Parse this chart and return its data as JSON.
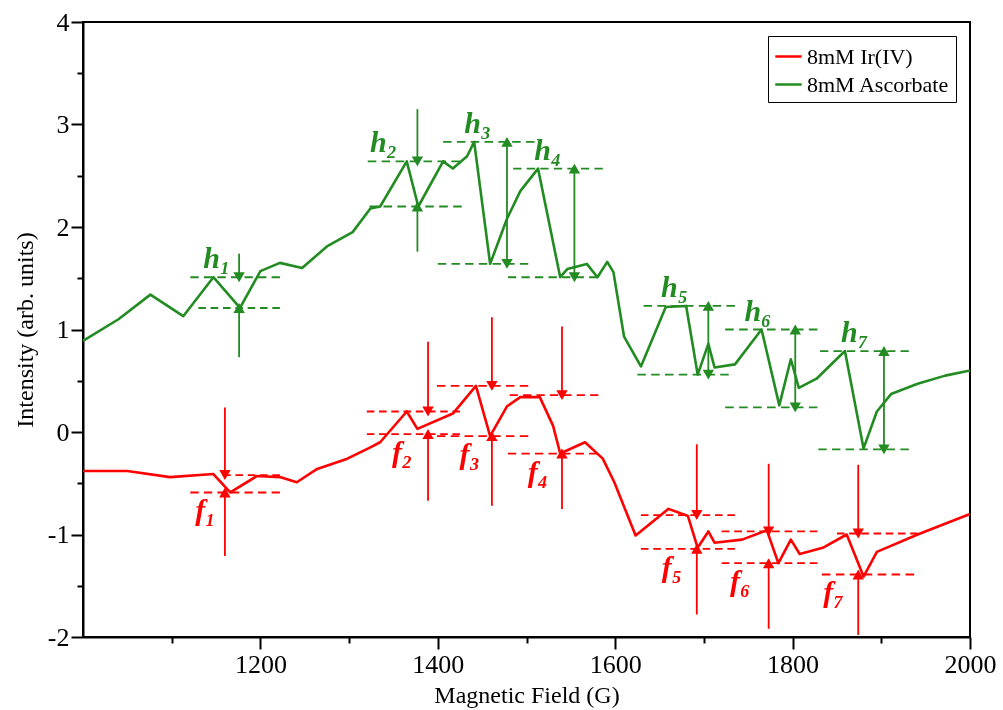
{
  "chart_data": {
    "type": "line",
    "xlabel": "Magnetic Field (G)",
    "ylabel": "Intensity (arb. units)",
    "xlim": [
      1000,
      2000
    ],
    "ylim": [
      -2,
      4
    ],
    "xticks": [
      {
        "value": 1100,
        "label": null
      },
      1200,
      {
        "value": 1300,
        "label": null
      },
      1400,
      {
        "value": 1500,
        "label": null
      },
      1600,
      {
        "value": 1700,
        "label": null
      },
      1800,
      {
        "value": 1900,
        "label": null
      },
      2000
    ],
    "yticks": [
      -2,
      {
        "value": -1.5,
        "label": null
      },
      -1,
      {
        "value": -0.5,
        "label": null
      },
      0,
      {
        "value": 0.5,
        "label": null
      },
      1,
      {
        "value": 1.5,
        "label": null
      },
      2,
      {
        "value": 2.5,
        "label": null
      },
      3,
      {
        "value": 3.5,
        "label": null
      },
      4
    ],
    "legend": "top right",
    "series": [
      {
        "name": "8mM Ir(IV)",
        "color": "#ff0000",
        "x": [
          1000,
          1050,
          1098,
          1147,
          1166,
          1196,
          1222,
          1241,
          1264,
          1298,
          1324,
          1335,
          1365,
          1377,
          1417,
          1443,
          1459,
          1478,
          1493,
          1515,
          1530,
          1538,
          1566,
          1586,
          1599,
          1623,
          1660,
          1682,
          1693,
          1705,
          1712,
          1743,
          1771,
          1784,
          1798,
          1808,
          1834,
          1861,
          1880,
          1895,
          1941,
          2000
        ],
        "values": [
          -0.38,
          -0.38,
          -0.44,
          -0.41,
          -0.59,
          -0.43,
          -0.44,
          -0.49,
          -0.36,
          -0.26,
          -0.15,
          -0.1,
          0.2,
          0.03,
          0.18,
          0.45,
          -0.04,
          0.25,
          0.34,
          0.34,
          0.06,
          -0.21,
          -0.1,
          -0.26,
          -0.49,
          -1.01,
          -0.75,
          -0.82,
          -1.13,
          -0.97,
          -1.08,
          -1.05,
          -0.96,
          -1.28,
          -1.05,
          -1.19,
          -1.13,
          -1.0,
          -1.41,
          -1.17,
          -1.0,
          -0.8
        ]
      },
      {
        "name": "8mM Ascorbate",
        "color": "#228b22",
        "x": [
          1000,
          1040,
          1076,
          1113,
          1147,
          1177,
          1200,
          1222,
          1247,
          1275,
          1304,
          1324,
          1335,
          1365,
          1378,
          1406,
          1417,
          1433,
          1441,
          1459,
          1478,
          1493,
          1513,
          1538,
          1546,
          1568,
          1580,
          1591,
          1598,
          1610,
          1629,
          1657,
          1680,
          1693,
          1705,
          1712,
          1735,
          1765,
          1785,
          1798,
          1807,
          1827,
          1859,
          1880,
          1895,
          1911,
          1941,
          1972,
          2000
        ],
        "values": [
          0.89,
          1.1,
          1.34,
          1.13,
          1.51,
          1.21,
          1.57,
          1.65,
          1.6,
          1.81,
          1.95,
          2.18,
          2.2,
          2.64,
          2.2,
          2.64,
          2.57,
          2.69,
          2.83,
          1.64,
          2.08,
          2.35,
          2.57,
          1.51,
          1.59,
          1.64,
          1.51,
          1.66,
          1.56,
          0.93,
          0.64,
          1.22,
          1.23,
          0.56,
          0.86,
          0.63,
          0.66,
          1.0,
          0.26,
          0.71,
          0.43,
          0.52,
          0.79,
          -0.16,
          0.2,
          0.37,
          0.47,
          0.55,
          0.6
        ]
      },
      {
        "type": "line",
        "color": "#228b22",
        "line_style": "dashed",
        "x": [
          1121,
          1222
        ],
        "values": [
          1.51,
          1.51
        ]
      },
      {
        "type": "line",
        "color": "#228b22",
        "line_style": "dashed",
        "x": [
          1130,
          1222
        ],
        "values": [
          1.21,
          1.21
        ]
      },
      {
        "type": "line",
        "color": "#228b22",
        "marker": "triangle",
        "x": [
          1176,
          1176
        ],
        "values": [
          1.74,
          1.51
        ]
      },
      {
        "type": "line",
        "color": "#228b22",
        "marker": "triangle",
        "x": [
          1176,
          1176
        ],
        "values": [
          0.73,
          1.21
        ]
      },
      {
        "type": "line",
        "color": "#228b22",
        "line_style": "dashed",
        "x": [
          1321,
          1425
        ],
        "values": [
          2.64,
          2.64
        ]
      },
      {
        "type": "line",
        "color": "#228b22",
        "line_style": "dashed",
        "x": [
          1323,
          1427
        ],
        "values": [
          2.2,
          2.2
        ]
      },
      {
        "type": "line",
        "color": "#228b22",
        "marker": "triangle",
        "x": [
          1377,
          1377
        ],
        "values": [
          3.15,
          2.64
        ]
      },
      {
        "type": "line",
        "color": "#228b22",
        "marker": "triangle",
        "x": [
          1377,
          1377
        ],
        "values": [
          1.76,
          2.2
        ]
      },
      {
        "type": "line",
        "color": "#228b22",
        "line_style": "dashed",
        "x": [
          1406,
          1509
        ],
        "values": [
          2.83,
          2.83
        ]
      },
      {
        "type": "line",
        "color": "#228b22",
        "line_style": "dashed",
        "x": [
          1400,
          1502
        ],
        "values": [
          1.64,
          1.64
        ]
      },
      {
        "type": "line",
        "color": "#228b22",
        "marker": "triangle",
        "x": [
          1478,
          1478,
          1478
        ],
        "values": [
          2.24,
          2.83,
          1.64
        ]
      },
      {
        "type": "line",
        "color": "#228b22",
        "line_style": "dashed",
        "x": [
          1485,
          1586
        ],
        "values": [
          2.57,
          2.57
        ]
      },
      {
        "type": "line",
        "color": "#228b22",
        "line_style": "dashed",
        "x": [
          1479,
          1580
        ],
        "values": [
          1.51,
          1.51
        ]
      },
      {
        "type": "line",
        "color": "#228b22",
        "marker": "triangle",
        "x": [
          1554,
          1554,
          1554
        ],
        "values": [
          2.04,
          2.57,
          1.51
        ]
      },
      {
        "type": "line",
        "color": "#228b22",
        "line_style": "dashed",
        "x": [
          1632,
          1735
        ],
        "values": [
          1.23,
          1.23
        ]
      },
      {
        "type": "line",
        "color": "#228b22",
        "line_style": "dashed",
        "x": [
          1625,
          1728
        ],
        "values": [
          0.56,
          0.56
        ]
      },
      {
        "type": "line",
        "color": "#228b22",
        "marker": "triangle",
        "x": [
          1705,
          1705,
          1705
        ],
        "values": [
          0.9,
          1.23,
          0.56
        ]
      },
      {
        "type": "line",
        "color": "#228b22",
        "line_style": "dashed",
        "x": [
          1724,
          1828
        ],
        "values": [
          1.0,
          1.0
        ]
      },
      {
        "type": "line",
        "color": "#228b22",
        "line_style": "dashed",
        "x": [
          1724,
          1828
        ],
        "values": [
          0.24,
          0.24
        ]
      },
      {
        "type": "line",
        "color": "#228b22",
        "marker": "triangle",
        "x": [
          1803,
          1803,
          1803
        ],
        "values": [
          0.62,
          1.0,
          0.24
        ]
      },
      {
        "type": "line",
        "color": "#228b22",
        "line_style": "dashed",
        "x": [
          1831,
          1931
        ],
        "values": [
          0.79,
          0.79
        ]
      },
      {
        "type": "line",
        "color": "#228b22",
        "line_style": "dashed",
        "x": [
          1829,
          1931
        ],
        "values": [
          -0.17,
          -0.17
        ]
      },
      {
        "type": "line",
        "color": "#228b22",
        "marker": "triangle",
        "x": [
          1903,
          1903,
          1903
        ],
        "values": [
          0.31,
          0.79,
          -0.17
        ]
      },
      {
        "type": "line",
        "color": "#ff0000",
        "line_style": "dashed",
        "x": [
          1158,
          1222
        ],
        "values": [
          -0.42,
          -0.42
        ]
      },
      {
        "type": "line",
        "color": "#ff0000",
        "line_style": "dashed",
        "x": [
          1121,
          1222
        ],
        "values": [
          -0.59,
          -0.59
        ]
      },
      {
        "type": "line",
        "color": "#ff0000",
        "marker": "triangle",
        "x": [
          1160,
          1160
        ],
        "values": [
          0.24,
          -0.42
        ]
      },
      {
        "type": "line",
        "color": "#ff0000",
        "marker": "triangle",
        "x": [
          1160,
          1160
        ],
        "values": [
          -1.21,
          -0.59
        ]
      },
      {
        "type": "line",
        "color": "#ff0000",
        "line_style": "dashed",
        "x": [
          1320,
          1425
        ],
        "values": [
          0.2,
          0.2
        ]
      },
      {
        "type": "line",
        "color": "#ff0000",
        "line_style": "dashed",
        "x": [
          1320,
          1425
        ],
        "values": [
          -0.02,
          -0.02
        ]
      },
      {
        "type": "line",
        "color": "#ff0000",
        "marker": "triangle",
        "x": [
          1389,
          1389
        ],
        "values": [
          0.88,
          0.2
        ]
      },
      {
        "type": "line",
        "color": "#ff0000",
        "marker": "triangle",
        "x": [
          1389,
          1389
        ],
        "values": [
          -0.67,
          -0.02
        ]
      },
      {
        "type": "line",
        "color": "#ff0000",
        "line_style": "dashed",
        "x": [
          1399,
          1502
        ],
        "values": [
          0.45,
          0.45
        ]
      },
      {
        "type": "line",
        "color": "#ff0000",
        "line_style": "dashed",
        "x": [
          1399,
          1502
        ],
        "values": [
          -0.04,
          -0.04
        ]
      },
      {
        "type": "line",
        "color": "#ff0000",
        "marker": "triangle",
        "x": [
          1461,
          1461
        ],
        "values": [
          1.12,
          0.45
        ]
      },
      {
        "type": "line",
        "color": "#ff0000",
        "marker": "triangle",
        "x": [
          1461,
          1461
        ],
        "values": [
          -0.72,
          -0.04
        ]
      },
      {
        "type": "line",
        "color": "#ff0000",
        "line_style": "dashed",
        "x": [
          1481,
          1581
        ],
        "values": [
          0.36,
          0.36
        ]
      },
      {
        "type": "line",
        "color": "#ff0000",
        "line_style": "dashed",
        "x": [
          1479,
          1580
        ],
        "values": [
          -0.21,
          -0.21
        ]
      },
      {
        "type": "line",
        "color": "#ff0000",
        "marker": "triangle",
        "x": [
          1540,
          1540
        ],
        "values": [
          1.03,
          0.36
        ]
      },
      {
        "type": "line",
        "color": "#ff0000",
        "marker": "triangle",
        "x": [
          1540,
          1540
        ],
        "values": [
          -0.75,
          -0.21
        ]
      },
      {
        "type": "line",
        "color": "#ff0000",
        "line_style": "dashed",
        "x": [
          1629,
          1735
        ],
        "values": [
          -0.81,
          -0.81
        ]
      },
      {
        "type": "line",
        "color": "#ff0000",
        "line_style": "dashed",
        "x": [
          1629,
          1735
        ],
        "values": [
          -1.14,
          -1.14
        ]
      },
      {
        "type": "line",
        "color": "#ff0000",
        "marker": "triangle",
        "x": [
          1692,
          1692
        ],
        "values": [
          -0.12,
          -0.81
        ]
      },
      {
        "type": "line",
        "color": "#ff0000",
        "marker": "triangle",
        "x": [
          1692,
          1692
        ],
        "values": [
          -1.78,
          -1.14
        ]
      },
      {
        "type": "line",
        "color": "#ff0000",
        "line_style": "dashed",
        "x": [
          1720,
          1828
        ],
        "values": [
          -0.97,
          -0.97
        ]
      },
      {
        "type": "line",
        "color": "#ff0000",
        "line_style": "dashed",
        "x": [
          1720,
          1828
        ],
        "values": [
          -1.28,
          -1.28
        ]
      },
      {
        "type": "line",
        "color": "#ff0000",
        "marker": "triangle",
        "x": [
          1773,
          1773
        ],
        "values": [
          -0.31,
          -0.97
        ]
      },
      {
        "type": "line",
        "color": "#ff0000",
        "marker": "triangle",
        "x": [
          1773,
          1773
        ],
        "values": [
          -1.92,
          -1.28
        ]
      },
      {
        "type": "line",
        "color": "#ff0000",
        "line_style": "dashed",
        "x": [
          1850,
          1941
        ],
        "values": [
          -0.99,
          -0.99
        ]
      },
      {
        "type": "line",
        "color": "#ff0000",
        "line_style": "dashed",
        "x": [
          1833,
          1937
        ],
        "values": [
          -1.39,
          -1.39
        ]
      },
      {
        "type": "line",
        "color": "#ff0000",
        "marker": "triangle",
        "x": [
          1874,
          1874
        ],
        "values": [
          -0.32,
          -0.99
        ]
      },
      {
        "type": "line",
        "color": "#ff0000",
        "marker": "triangle",
        "x": [
          1874,
          1874
        ],
        "values": [
          -1.98,
          -1.39
        ]
      }
    ],
    "annotations": [
      {
        "text": "h₁",
        "x": 1151,
        "y": 1.51
      },
      {
        "text": "h₂",
        "x": 1339,
        "y": 2.64
      },
      {
        "text": "h₃",
        "x": 1445,
        "y": 2.83
      },
      {
        "text": "h₄",
        "x": 1524,
        "y": 2.57
      },
      {
        "text": "h₅",
        "x": 1667,
        "y": 1.23
      },
      {
        "text": "h₆",
        "x": 1761,
        "y": 1.0
      },
      {
        "text": "h₇",
        "x": 1870,
        "y": 0.79
      },
      {
        "text": "f₁",
        "x": 1138,
        "y": -0.59
      },
      {
        "text": "f₂",
        "x": 1360,
        "y": -0.02
      },
      {
        "text": "f₃",
        "x": 1436,
        "y": -0.04
      },
      {
        "text": "f₄",
        "x": 1513,
        "y": -0.21
      },
      {
        "text": "f₅",
        "x": 1664,
        "y": -1.14
      },
      {
        "text": "f₆",
        "x": 1741,
        "y": -1.28
      },
      {
        "text": "f₇",
        "x": 1846,
        "y": -1.39
      }
    ]
  }
}
